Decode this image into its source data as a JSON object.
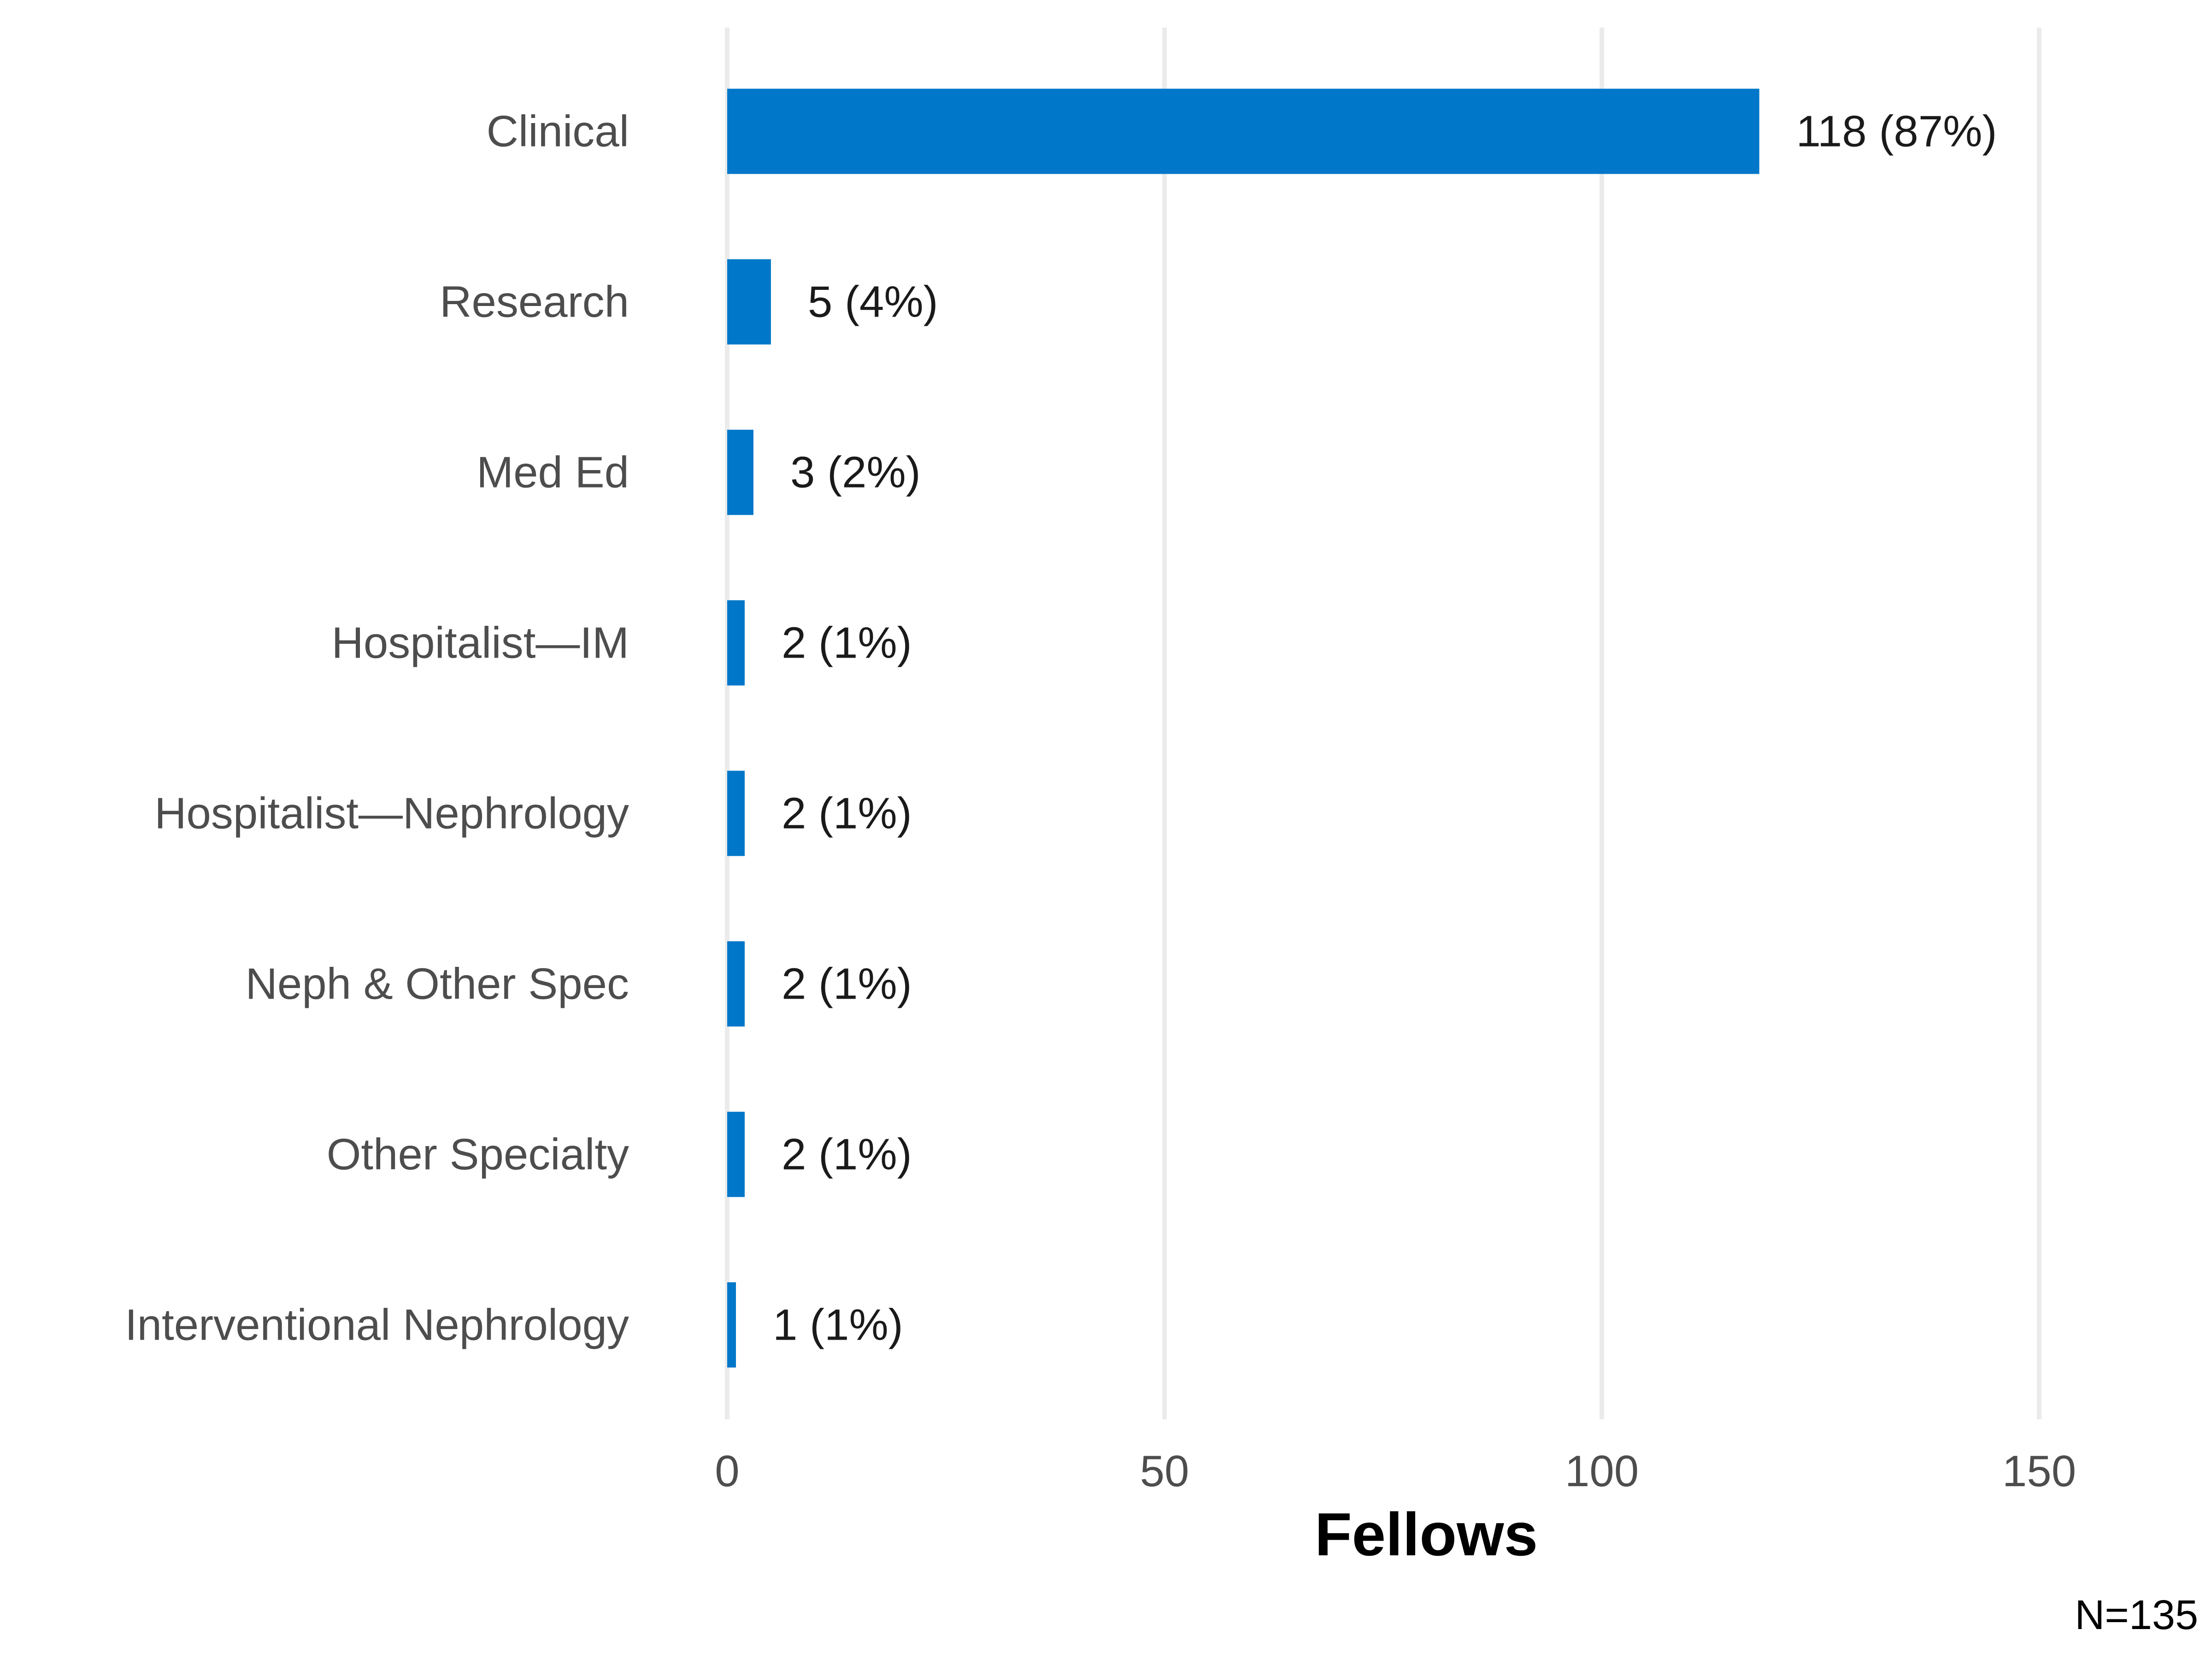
{
  "chart_data": {
    "type": "bar",
    "orientation": "horizontal",
    "categories": [
      "Clinical",
      "Research",
      "Med Ed",
      "Hospitalist—IM",
      "Hospitalist—Nephrology",
      "Neph & Other Spec",
      "Other Specialty",
      "Interventional Nephrology"
    ],
    "values": [
      118,
      5,
      3,
      2,
      2,
      2,
      2,
      1
    ],
    "data_labels": [
      "118 (87%)",
      "5 (4%)",
      "3 (2%)",
      "2 (1%)",
      "2 (1%)",
      "2 (1%)",
      "2 (1%)",
      "1 (1%)"
    ],
    "xlabel": "Fellows",
    "ylabel": "",
    "xlim": [
      0,
      150
    ],
    "xticks": [
      0,
      50,
      100,
      150
    ],
    "grid": true,
    "bar_color": "#0077c8",
    "grid_color": "#ebebeb",
    "footnote": "N=135"
  }
}
